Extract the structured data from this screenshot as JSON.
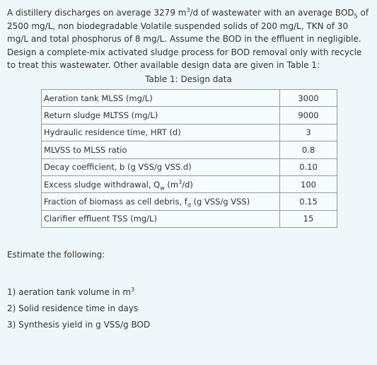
{
  "problem": {
    "p1": "A distillery discharges on average 3279 m",
    "p1_sup": "3",
    "p2": "/d of wastewater with an average BOD",
    "p2_sub": "5",
    "p3": " of 2500 mg/L, non biodegradable Volatile suspended solids of 200 mg/L, TKN of 30 mg/L and total phosphorus of 8 mg/L. Assume the BOD in the effluent in negligible. Design a complete-mix activated sludge process for BOD removal only with recycle to treat this wastewater. Other available design data are given in Table 1:"
  },
  "table": {
    "caption": "Table 1: Design data",
    "rows": [
      {
        "label": "Aeration tank MLSS (mg/L)",
        "value": "3000"
      },
      {
        "label": "Return sludge MLTSS (mg/L)",
        "value": "9000"
      },
      {
        "label": "Hydraulic residence time, HRT (d)",
        "value": "3"
      },
      {
        "label": "MLVSS to MLSS ratio",
        "value": "0.8"
      },
      {
        "label": "Decay coefficient, b (g VSS/g VSS.d)",
        "value": "0.10"
      },
      {
        "label_pre": "Excess sludge withdrawal, Q",
        "label_sub": "w",
        "label_mid": " (m",
        "label_sup": "3",
        "label_post": "/d)",
        "value": "100"
      },
      {
        "label_pre": "Fraction of biomass as cell debris, f",
        "label_sub": "d",
        "label_post": " (g VSS/g VSS)",
        "value": "0.15"
      },
      {
        "label": "Clarifier effluent TSS (mg/L)",
        "value": "15"
      }
    ]
  },
  "estimate_label": "Estimate the following:",
  "questions": {
    "q1": "1) aeration tank volume in m",
    "q1_sup": "3",
    "q2": "2) Solid residence time in days",
    "q3": "3) Synthesis yield in g VSS/g BOD"
  }
}
